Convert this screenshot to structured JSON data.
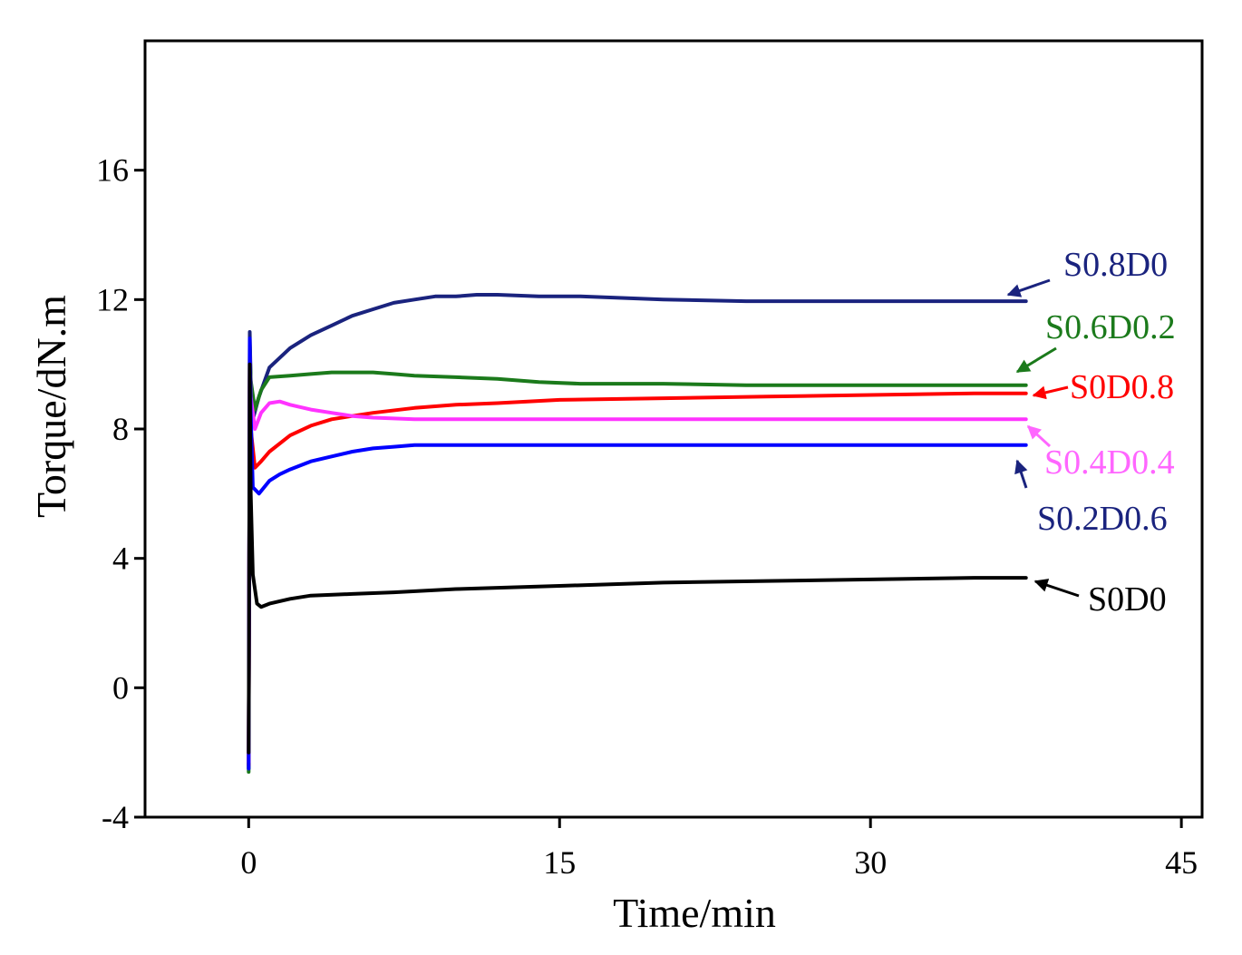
{
  "chart_data": {
    "type": "line",
    "title": "",
    "xlabel": "Time/min",
    "ylabel": "Torque/dN.m",
    "xlim": [
      -5,
      46
    ],
    "ylim": [
      -4,
      20
    ],
    "xticks": [
      0,
      15,
      30,
      45
    ],
    "yticks": [
      -4,
      0,
      4,
      8,
      12,
      16
    ],
    "grid": false,
    "legend": "inline labels with arrows at right end of each curve",
    "series": [
      {
        "name": "S0.8D0",
        "color": "#1a237e",
        "x": [
          0,
          0.05,
          0.1,
          0.2,
          0.5,
          1,
          2,
          3,
          4,
          5,
          6,
          7,
          8,
          9,
          10,
          11,
          12,
          14,
          16,
          18,
          20,
          24,
          28,
          32,
          36,
          37.5
        ],
        "y": [
          -2.5,
          11.0,
          9.5,
          8.3,
          9.0,
          9.9,
          10.5,
          10.9,
          11.2,
          11.5,
          11.7,
          11.9,
          12.0,
          12.1,
          12.1,
          12.15,
          12.15,
          12.1,
          12.1,
          12.05,
          12.0,
          11.95,
          11.95,
          11.95,
          11.95,
          11.95
        ]
      },
      {
        "name": "S0.6D0.2",
        "color": "#1b7a1b",
        "x": [
          0,
          0.05,
          0.1,
          0.3,
          0.6,
          1,
          2,
          3,
          4,
          5,
          6,
          7,
          8,
          10,
          12,
          14,
          16,
          20,
          24,
          28,
          32,
          36,
          37.5
        ],
        "y": [
          -2.6,
          10.6,
          9.5,
          8.6,
          9.2,
          9.6,
          9.65,
          9.7,
          9.75,
          9.75,
          9.75,
          9.7,
          9.65,
          9.6,
          9.55,
          9.45,
          9.4,
          9.4,
          9.35,
          9.35,
          9.35,
          9.35,
          9.35
        ]
      },
      {
        "name": "S0D0.8",
        "color": "#ff0000",
        "x": [
          0,
          0.05,
          0.1,
          0.3,
          0.6,
          1,
          2,
          3,
          4,
          5,
          6,
          8,
          10,
          12,
          15,
          20,
          25,
          30,
          35,
          37.5
        ],
        "y": [
          -2.4,
          10.2,
          8.0,
          6.8,
          7.0,
          7.3,
          7.8,
          8.1,
          8.3,
          8.4,
          8.5,
          8.65,
          8.75,
          8.8,
          8.9,
          8.95,
          9.0,
          9.05,
          9.1,
          9.1
        ]
      },
      {
        "name": "S0.4D0.4",
        "color": "#ff33ff",
        "x": [
          0,
          0.05,
          0.1,
          0.3,
          0.6,
          1,
          1.5,
          2,
          3,
          4,
          5,
          6,
          8,
          10,
          12,
          15,
          20,
          25,
          30,
          35,
          37.5
        ],
        "y": [
          -2.3,
          10.4,
          9.0,
          8.0,
          8.5,
          8.8,
          8.85,
          8.75,
          8.6,
          8.5,
          8.4,
          8.35,
          8.3,
          8.3,
          8.3,
          8.3,
          8.3,
          8.3,
          8.3,
          8.3,
          8.3
        ]
      },
      {
        "name": "S0.2D0.6",
        "color": "#0000ff",
        "x": [
          0,
          0.05,
          0.1,
          0.2,
          0.5,
          1,
          1.5,
          2,
          3,
          4,
          5,
          6,
          7,
          8,
          10,
          12,
          15,
          20,
          25,
          30,
          35,
          37.5
        ],
        "y": [
          -2.5,
          10.8,
          8.5,
          6.2,
          6.0,
          6.4,
          6.6,
          6.75,
          7.0,
          7.15,
          7.3,
          7.4,
          7.45,
          7.5,
          7.5,
          7.5,
          7.5,
          7.5,
          7.5,
          7.5,
          7.5,
          7.5
        ]
      },
      {
        "name": "S0D0",
        "color": "#000000",
        "x": [
          0,
          0.05,
          0.1,
          0.2,
          0.4,
          0.6,
          1,
          2,
          3,
          5,
          7,
          10,
          15,
          20,
          25,
          30,
          35,
          37.5
        ],
        "y": [
          -2.0,
          10.0,
          6.0,
          3.5,
          2.6,
          2.5,
          2.6,
          2.75,
          2.85,
          2.9,
          2.95,
          3.05,
          3.15,
          3.25,
          3.3,
          3.35,
          3.4,
          3.4
        ]
      }
    ],
    "annotations": [
      {
        "text": "S0.8D0",
        "color": "#1a237e"
      },
      {
        "text": "S0.6D0.2",
        "color": "#1b7a1b"
      },
      {
        "text": "S0D0.8",
        "color": "#ff0000"
      },
      {
        "text": "S0.4D0.4",
        "color": "#ff66ff"
      },
      {
        "text": "S0.2D0.6",
        "color": "#1a237e"
      },
      {
        "text": "S0D0",
        "color": "#000000"
      }
    ]
  }
}
